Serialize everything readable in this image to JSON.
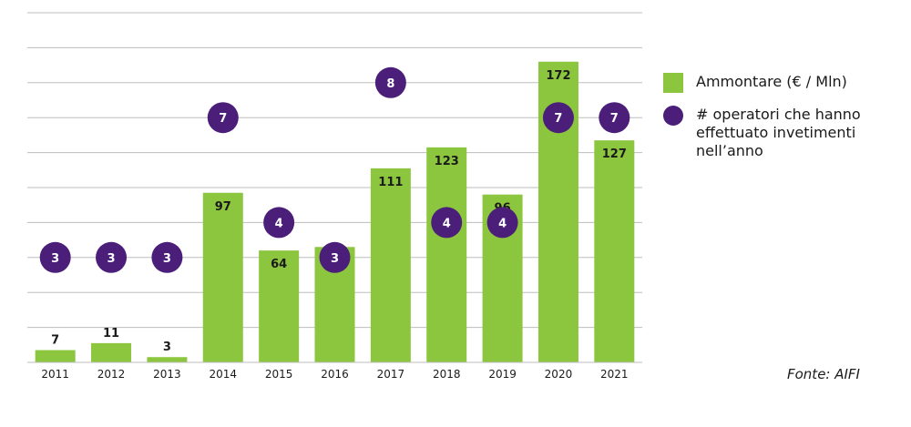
{
  "chart_data": {
    "type": "bar",
    "categories": [
      "2011",
      "2012",
      "2013",
      "2014",
      "2015",
      "2016",
      "2017",
      "2018",
      "2019",
      "2020",
      "2021"
    ],
    "series": [
      {
        "name": "Ammontare (€ / Mln)",
        "kind": "bar",
        "values": [
          7,
          11,
          3,
          97,
          64,
          66,
          111,
          123,
          96,
          172,
          127
        ]
      },
      {
        "name": "# operatori che hanno effettuato invetimenti nell’anno",
        "kind": "dot",
        "values": [
          3,
          3,
          3,
          7,
          4,
          3,
          8,
          4,
          4,
          7,
          7
        ]
      }
    ],
    "ylim": [
      0,
      200
    ],
    "dot_ylim": [
      0,
      10
    ],
    "grid": true,
    "legend_position": "right",
    "colors": {
      "bar": "#8cc63f",
      "dot": "#4b1e7a",
      "grid": "#bdbdbd",
      "dot_text": "#ffffff"
    }
  },
  "legend": {
    "bar_label": "Ammontare (€ / Mln)",
    "dot_label": "# operatori che hanno effettuato invetimenti nell’anno"
  },
  "source": "Fonte: AIFI"
}
